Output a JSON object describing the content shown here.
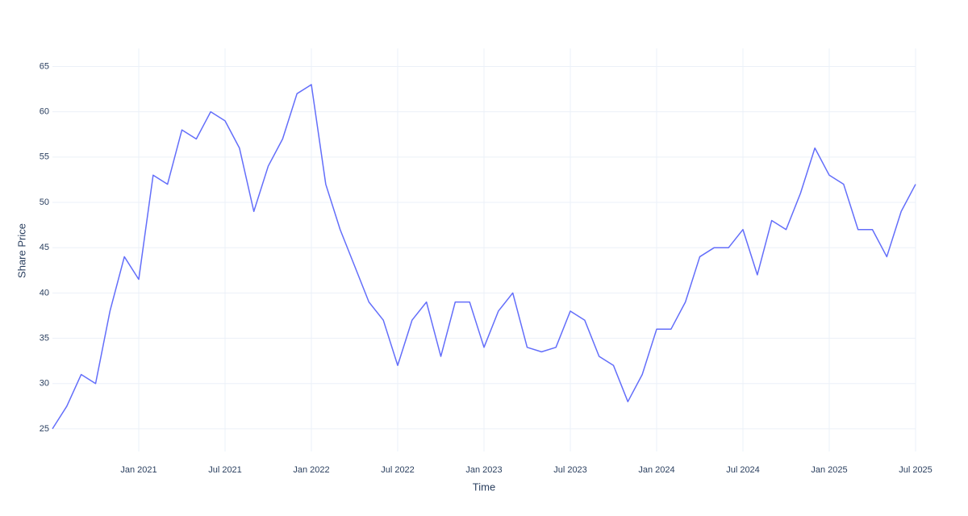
{
  "chart_data": {
    "type": "line",
    "x_label": "Time",
    "y_label": "Share Price",
    "x": [
      "2020-07",
      "2020-08",
      "2020-09",
      "2020-10",
      "2020-11",
      "2020-12",
      "2021-01",
      "2021-02",
      "2021-03",
      "2021-04",
      "2021-05",
      "2021-06",
      "2021-07",
      "2021-08",
      "2021-09",
      "2021-10",
      "2021-11",
      "2021-12",
      "2022-01",
      "2022-02",
      "2022-03",
      "2022-04",
      "2022-05",
      "2022-06",
      "2022-07",
      "2022-08",
      "2022-09",
      "2022-10",
      "2022-11",
      "2022-12",
      "2023-01",
      "2023-02",
      "2023-03",
      "2023-04",
      "2023-05",
      "2023-06",
      "2023-07",
      "2023-08",
      "2023-09",
      "2023-10",
      "2023-11",
      "2023-12",
      "2024-01",
      "2024-02",
      "2024-03",
      "2024-04",
      "2024-05",
      "2024-06",
      "2024-07",
      "2024-08",
      "2024-09",
      "2024-10",
      "2024-11",
      "2024-12",
      "2025-01",
      "2025-02",
      "2025-03",
      "2025-04",
      "2025-05",
      "2025-06",
      "2025-07"
    ],
    "series": [
      {
        "name": "Share Price",
        "color": "#636efa",
        "values": [
          25,
          27.5,
          31,
          30,
          38,
          44,
          41.5,
          53,
          52,
          58,
          57,
          60,
          59,
          56,
          49,
          54,
          57,
          62,
          63,
          52,
          47,
          43,
          39,
          37,
          32,
          37,
          39,
          33,
          39,
          39,
          34,
          38,
          40,
          34,
          33.5,
          34,
          38,
          37,
          33,
          32,
          28,
          31,
          36,
          36,
          39,
          44,
          45,
          45,
          47,
          42,
          48,
          47,
          51,
          56,
          53,
          52,
          47,
          47,
          44,
          49,
          52
        ]
      }
    ],
    "xlim": [
      "2020-07",
      "2025-07"
    ],
    "xticks": [
      {
        "value": "2021-01",
        "label": "Jan 2021"
      },
      {
        "value": "2021-07",
        "label": "Jul 2021"
      },
      {
        "value": "2022-01",
        "label": "Jan 2022"
      },
      {
        "value": "2022-07",
        "label": "Jul 2022"
      },
      {
        "value": "2023-01",
        "label": "Jan 2023"
      },
      {
        "value": "2023-07",
        "label": "Jul 2023"
      },
      {
        "value": "2024-01",
        "label": "Jan 2024"
      },
      {
        "value": "2024-07",
        "label": "Jul 2024"
      },
      {
        "value": "2025-01",
        "label": "Jan 2025"
      },
      {
        "value": "2025-07",
        "label": "Jul 2025"
      }
    ],
    "ylim": [
      22.5,
      67
    ],
    "yticks": [
      25,
      30,
      35,
      40,
      45,
      50,
      55,
      60,
      65
    ],
    "grid": true
  }
}
